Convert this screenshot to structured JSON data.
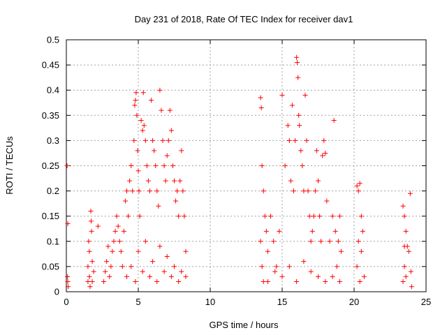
{
  "chart_data": {
    "type": "scatter",
    "title": "Day 231 of 2018, Rate Of TEC Index for receiver dav1",
    "xlabel": "GPS time / hours",
    "ylabel": "ROTI / TECUs",
    "xlim": [
      0,
      25
    ],
    "ylim": [
      0,
      0.5
    ],
    "x_ticks": [
      "0",
      "5",
      "10",
      "15",
      "20",
      "25"
    ],
    "y_ticks": [
      "0",
      "0.05",
      "0.1",
      "0.15",
      "0.2",
      "0.25",
      "0.3",
      "0.35",
      "0.4",
      "0.45",
      "0.5"
    ],
    "grid": true,
    "marker": "plus",
    "color": "#ff0000",
    "series": [
      {
        "points": [
          [
            0.05,
            0.25
          ],
          [
            0.1,
            0.135
          ],
          [
            0.08,
            0.03
          ],
          [
            0.12,
            0.01
          ],
          [
            0.1,
            0.02
          ],
          [
            1.5,
            0.02
          ],
          [
            1.5,
            0.05
          ],
          [
            1.55,
            0.1
          ],
          [
            1.6,
            0.08
          ],
          [
            1.6,
            0.03
          ],
          [
            1.65,
            0.01
          ],
          [
            1.7,
            0.16
          ],
          [
            1.72,
            0.14
          ],
          [
            1.75,
            0.12
          ],
          [
            1.8,
            0.06
          ],
          [
            1.8,
            0.02
          ],
          [
            1.9,
            0.04
          ],
          [
            2.2,
            0.13
          ],
          [
            2.6,
            0.02
          ],
          [
            2.7,
            0.04
          ],
          [
            2.8,
            0.06
          ],
          [
            2.9,
            0.09
          ],
          [
            3.0,
            0.03
          ],
          [
            3.1,
            0.05
          ],
          [
            3.2,
            0.08
          ],
          [
            3.3,
            0.1
          ],
          [
            3.4,
            0.12
          ],
          [
            3.5,
            0.15
          ],
          [
            3.6,
            0.13
          ],
          [
            3.7,
            0.1
          ],
          [
            3.8,
            0.08
          ],
          [
            3.9,
            0.05
          ],
          [
            4.0,
            0.12
          ],
          [
            4.1,
            0.18
          ],
          [
            4.2,
            0.2
          ],
          [
            4.3,
            0.15
          ],
          [
            4.4,
            0.22
          ],
          [
            4.5,
            0.25
          ],
          [
            4.6,
            0.2
          ],
          [
            4.7,
            0.3
          ],
          [
            4.75,
            0.37
          ],
          [
            4.8,
            0.38
          ],
          [
            4.85,
            0.395
          ],
          [
            4.9,
            0.35
          ],
          [
            4.95,
            0.28
          ],
          [
            5.0,
            0.24
          ],
          [
            5.05,
            0.2
          ],
          [
            5.1,
            0.15
          ],
          [
            5.2,
            0.34
          ],
          [
            5.3,
            0.32
          ],
          [
            5.35,
            0.395
          ],
          [
            5.4,
            0.33
          ],
          [
            5.5,
            0.3
          ],
          [
            5.6,
            0.25
          ],
          [
            5.7,
            0.22
          ],
          [
            5.8,
            0.2
          ],
          [
            5.9,
            0.38
          ],
          [
            6.0,
            0.3
          ],
          [
            6.1,
            0.28
          ],
          [
            6.2,
            0.25
          ],
          [
            6.3,
            0.2
          ],
          [
            6.4,
            0.17
          ],
          [
            6.5,
            0.4
          ],
          [
            6.6,
            0.36
          ],
          [
            6.7,
            0.3
          ],
          [
            6.8,
            0.25
          ],
          [
            6.9,
            0.22
          ],
          [
            7.0,
            0.27
          ],
          [
            7.1,
            0.3
          ],
          [
            7.2,
            0.36
          ],
          [
            7.3,
            0.32
          ],
          [
            7.4,
            0.25
          ],
          [
            7.5,
            0.22
          ],
          [
            7.6,
            0.18
          ],
          [
            7.7,
            0.2
          ],
          [
            7.8,
            0.15
          ],
          [
            7.9,
            0.22
          ],
          [
            8.0,
            0.28
          ],
          [
            8.1,
            0.2
          ],
          [
            8.2,
            0.15
          ],
          [
            8.3,
            0.08
          ],
          [
            8.3,
            0.03
          ],
          [
            4.5,
            0.05
          ],
          [
            5.0,
            0.08
          ],
          [
            5.5,
            0.1
          ],
          [
            6.0,
            0.06
          ],
          [
            6.5,
            0.09
          ],
          [
            7.0,
            0.07
          ],
          [
            7.5,
            0.05
          ],
          [
            8.0,
            0.04
          ],
          [
            4.2,
            0.03
          ],
          [
            4.8,
            0.02
          ],
          [
            5.3,
            0.04
          ],
          [
            5.8,
            0.03
          ],
          [
            6.3,
            0.02
          ],
          [
            6.8,
            0.04
          ],
          [
            7.3,
            0.03
          ],
          [
            7.8,
            0.02
          ],
          [
            13.5,
            0.385
          ],
          [
            13.55,
            0.365
          ],
          [
            13.6,
            0.25
          ],
          [
            13.7,
            0.2
          ],
          [
            13.8,
            0.15
          ],
          [
            13.5,
            0.1
          ],
          [
            13.6,
            0.05
          ],
          [
            13.7,
            0.02
          ],
          [
            13.9,
            0.12
          ],
          [
            14.0,
            0.08
          ],
          [
            14.2,
            0.15
          ],
          [
            14.4,
            0.1
          ],
          [
            14.6,
            0.05
          ],
          [
            14.8,
            0.12
          ],
          [
            15.0,
            0.39
          ],
          [
            15.2,
            0.25
          ],
          [
            15.4,
            0.33
          ],
          [
            15.5,
            0.3
          ],
          [
            15.6,
            0.22
          ],
          [
            15.7,
            0.37
          ],
          [
            15.8,
            0.2
          ],
          [
            15.9,
            0.3
          ],
          [
            16.0,
            0.465
          ],
          [
            16.05,
            0.455
          ],
          [
            16.1,
            0.425
          ],
          [
            16.15,
            0.35
          ],
          [
            16.2,
            0.33
          ],
          [
            16.3,
            0.28
          ],
          [
            16.4,
            0.25
          ],
          [
            16.5,
            0.2
          ],
          [
            16.6,
            0.39
          ],
          [
            16.7,
            0.3
          ],
          [
            16.8,
            0.2
          ],
          [
            16.9,
            0.15
          ],
          [
            17.0,
            0.1
          ],
          [
            17.1,
            0.12
          ],
          [
            17.2,
            0.15
          ],
          [
            17.3,
            0.2
          ],
          [
            17.4,
            0.28
          ],
          [
            17.5,
            0.22
          ],
          [
            17.6,
            0.15
          ],
          [
            17.7,
            0.1
          ],
          [
            17.8,
            0.27
          ],
          [
            17.9,
            0.3
          ],
          [
            18.0,
            0.275
          ],
          [
            18.1,
            0.18
          ],
          [
            18.3,
            0.1
          ],
          [
            18.5,
            0.15
          ],
          [
            18.6,
            0.34
          ],
          [
            18.7,
            0.12
          ],
          [
            18.9,
            0.1
          ],
          [
            19.0,
            0.15
          ],
          [
            19.1,
            0.08
          ],
          [
            14.0,
            0.02
          ],
          [
            15.0,
            0.03
          ],
          [
            16.0,
            0.02
          ],
          [
            17.0,
            0.04
          ],
          [
            18.0,
            0.02
          ],
          [
            18.5,
            0.03
          ],
          [
            19.0,
            0.02
          ],
          [
            14.5,
            0.04
          ],
          [
            15.5,
            0.05
          ],
          [
            16.5,
            0.06
          ],
          [
            17.5,
            0.03
          ],
          [
            18.8,
            0.05
          ],
          [
            20.2,
            0.21
          ],
          [
            20.3,
            0.2
          ],
          [
            20.4,
            0.215
          ],
          [
            20.5,
            0.15
          ],
          [
            20.3,
            0.1
          ],
          [
            20.2,
            0.05
          ],
          [
            20.4,
            0.02
          ],
          [
            20.5,
            0.08
          ],
          [
            20.6,
            0.12
          ],
          [
            20.7,
            0.03
          ],
          [
            23.4,
            0.17
          ],
          [
            23.5,
            0.15
          ],
          [
            23.6,
            0.12
          ],
          [
            23.7,
            0.09
          ],
          [
            23.5,
            0.05
          ],
          [
            23.4,
            0.02
          ],
          [
            23.6,
            0.03
          ],
          [
            23.8,
            0.08
          ],
          [
            23.9,
            0.195
          ],
          [
            23.95,
            0.04
          ],
          [
            24.0,
            0.01
          ],
          [
            23.5,
            0.09
          ]
        ]
      }
    ]
  }
}
